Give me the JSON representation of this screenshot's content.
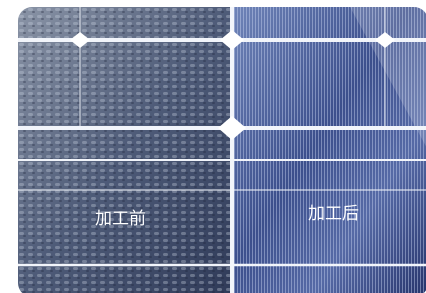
{
  "labels": {
    "before": "加工前",
    "after": "加工后"
  }
}
